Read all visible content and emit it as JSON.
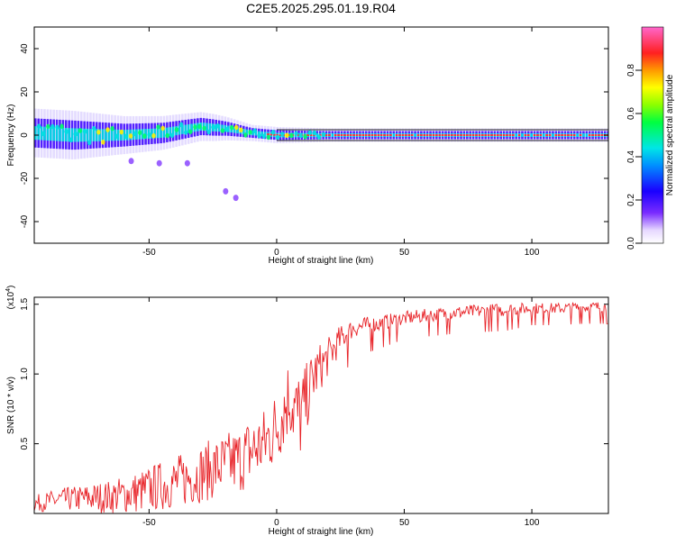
{
  "title": "C2E5.2025.295.01.19.R04",
  "colors": {
    "snr_line": "#e8262b",
    "band_center": "#ff3030",
    "band_core": "#00e0e0",
    "band_outer": "#3a00ff",
    "band_haze": "#b39bff"
  },
  "chart_data": [
    {
      "type": "heatmap",
      "xlabel": "Height of straight line (km)",
      "ylabel": "Frequency (Hz)",
      "xlim": [
        -95,
        130
      ],
      "ylim": [
        -50,
        50
      ],
      "xticks": [
        -50,
        0,
        50,
        100
      ],
      "yticks": [
        -40,
        -20,
        0,
        20,
        40
      ],
      "grid": false,
      "colorbar": {
        "label": "Normalized spectral amplitude",
        "range": [
          0,
          1
        ],
        "ticks": [
          "0.0",
          "0.2",
          "0.4",
          "0.6",
          "0.8"
        ]
      },
      "band_centerline": [
        [
          -95,
          1
        ],
        [
          -80,
          0
        ],
        [
          -60,
          0
        ],
        [
          -45,
          1
        ],
        [
          -30,
          4
        ],
        [
          -20,
          3
        ],
        [
          -10,
          1
        ],
        [
          0,
          0
        ],
        [
          10,
          0
        ],
        [
          20,
          0
        ],
        [
          60,
          0
        ],
        [
          100,
          0
        ],
        [
          130,
          0
        ]
      ],
      "band_halfwidth": [
        [
          -95,
          9
        ],
        [
          -80,
          9
        ],
        [
          -60,
          7
        ],
        [
          -40,
          6
        ],
        [
          -25,
          5
        ],
        [
          -10,
          3
        ],
        [
          0,
          3
        ],
        [
          20,
          2.5
        ],
        [
          130,
          2.5
        ]
      ],
      "faint_features": [
        {
          "x": -57,
          "y": -12
        },
        {
          "x": -46,
          "y": -13
        },
        {
          "x": -35,
          "y": -13
        },
        {
          "x": -20,
          "y": -26
        },
        {
          "x": -16,
          "y": -29
        }
      ]
    },
    {
      "type": "line",
      "xlabel": "Height of straight line (km)",
      "ylabel": "SNR (10 * v/v)",
      "yscale_label": "(x10^4)",
      "xlim": [
        -95,
        130
      ],
      "ylim": [
        0,
        1.55
      ],
      "xticks": [
        -50,
        0,
        50,
        100
      ],
      "yticks": [
        "0.5",
        "1.0",
        "1.5"
      ],
      "grid": false,
      "series": [
        {
          "name": "",
          "x": [
            -95,
            -85,
            -75,
            -65,
            -55,
            -45,
            -35,
            -25,
            -15,
            -10,
            -5,
            0,
            5,
            8,
            10,
            12,
            15,
            20,
            25,
            30,
            40,
            50,
            60,
            70,
            80,
            90,
            100,
            110,
            120,
            130
          ],
          "y": [
            0.07,
            0.1,
            0.11,
            0.12,
            0.15,
            0.2,
            0.25,
            0.32,
            0.38,
            0.45,
            0.5,
            0.62,
            0.85,
            0.7,
            0.7,
            0.85,
            1.0,
            1.12,
            1.25,
            1.33,
            1.36,
            1.4,
            1.42,
            1.44,
            1.45,
            1.46,
            1.47,
            1.47,
            1.48,
            1.48
          ],
          "noise": [
            0.06,
            0.08,
            0.1,
            0.12,
            0.15,
            0.18,
            0.2,
            0.22,
            0.24,
            0.26,
            0.26,
            0.28,
            0.3,
            0.34,
            0.32,
            0.24,
            0.2,
            0.14,
            0.1,
            0.07,
            0.06,
            0.05,
            0.05,
            0.05,
            0.05,
            0.05,
            0.04,
            0.04,
            0.04,
            0.04
          ]
        }
      ]
    }
  ]
}
